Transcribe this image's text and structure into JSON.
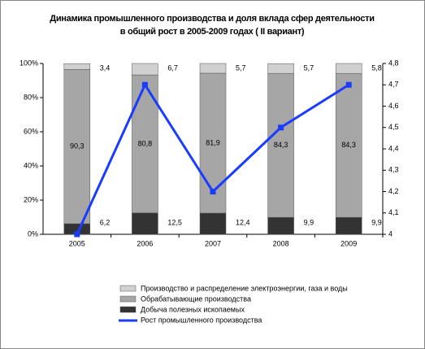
{
  "chart_data": {
    "type": "stacked-bar-line",
    "title": "Динамика промышленного производства и доля вклада сфер деятельности в общий рост в 2005-2009 годах ( II вариант)",
    "categories": [
      "2005",
      "2006",
      "2007",
      "2008",
      "2009"
    ],
    "series": [
      {
        "name": "Добыча полезных ископаемых",
        "color": "#333333",
        "values": [
          6.2,
          12.5,
          12.4,
          9.9,
          9.9
        ],
        "value_labels": [
          "6,2",
          "12,5",
          "12,4",
          "9,9",
          "9,9"
        ]
      },
      {
        "name": "Обрабатывающие производства",
        "color": "#a6a6a6",
        "values": [
          90.3,
          80.8,
          81.9,
          84.3,
          84.3
        ],
        "value_labels": [
          "90,3",
          "80,8",
          "81,9",
          "84,3",
          "84,3"
        ]
      },
      {
        "name": "Производство и распределение электроэнергии, газа и воды",
        "color": "#d0d0d0",
        "values": [
          3.4,
          6.7,
          5.7,
          5.7,
          5.8
        ],
        "value_labels": [
          "3,4",
          "6,7",
          "5,7",
          "5,7",
          "5,8"
        ]
      },
      {
        "name": "Рост промышленного производства",
        "color": "#1a3cff",
        "axis": "y2",
        "values": [
          4,
          4.7,
          4.2,
          4.5,
          4.7
        ]
      }
    ],
    "ylim": [
      0,
      100
    ],
    "yticks": [
      {
        "value": 0,
        "label": "0%"
      },
      {
        "value": 20,
        "label": "20%"
      },
      {
        "value": 40,
        "label": "40%"
      },
      {
        "value": 60,
        "label": "60%"
      },
      {
        "value": 80,
        "label": "80%"
      },
      {
        "value": 100,
        "label": "100%"
      }
    ],
    "y2lim": [
      4,
      4.8
    ],
    "y2ticks": [
      4,
      {
        "value": 4.1,
        "label": "4,1"
      },
      {
        "value": 4.2,
        "label": "4,2"
      },
      {
        "value": 4.3,
        "label": "4,3"
      },
      {
        "value": 4.4,
        "label": "4,4"
      },
      {
        "value": 4.5,
        "label": "4,5"
      },
      {
        "value": 4.6,
        "label": "4,6"
      },
      {
        "value": 4.7,
        "label": "4,7"
      },
      {
        "value": 4.8,
        "label": "4,8"
      }
    ]
  }
}
